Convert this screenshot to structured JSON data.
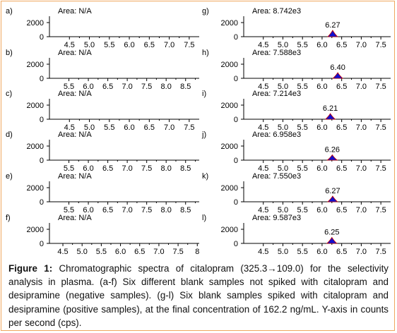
{
  "figure": {
    "caption_label": "Figure 1:",
    "caption_text": " Chromatographic spectra of citalopram (325.3→109.0) for the selectivity analysis in plasma. (a-f) Six different blank samples not spiked with citalopram and desipramine (negative samples). (g-l) Six blank samples spiked with citalopram and desipramine (positive samples), at the final concentration of 162.2 ng/mL. Y-axis in counts per second (cps)."
  },
  "colors": {
    "peak_fill": "#1010d0",
    "peak_outline": "#c00000",
    "axis": "#000000"
  },
  "chart_data": [
    {
      "panel": "a)",
      "type": "area",
      "area_label": "Area: N/A",
      "yticks": [
        0,
        2000
      ],
      "ylim": [
        0,
        2700
      ],
      "xlim": [
        4.0,
        7.75
      ],
      "xticks": [
        "4.5",
        "5.0",
        "5.5",
        "6.0",
        "6.5",
        "7.0",
        "7.5"
      ],
      "peak": null
    },
    {
      "panel": "b)",
      "type": "area",
      "area_label": "Area: N/A",
      "yticks": [
        0,
        2000
      ],
      "ylim": [
        0,
        2700
      ],
      "xlim": [
        5.0,
        8.85
      ],
      "xticks": [
        "5.5",
        "6.0",
        "6.5",
        "7.0",
        "7.5",
        "8.0",
        "8.5"
      ],
      "peak": null
    },
    {
      "panel": "c)",
      "type": "area",
      "area_label": "Area: N/A",
      "yticks": [
        0,
        2000
      ],
      "ylim": [
        0,
        2700
      ],
      "xlim": [
        4.0,
        7.75
      ],
      "xticks": [
        "4.5",
        "5.0",
        "5.5",
        "6.0",
        "6.5",
        "7.0",
        "7.5"
      ],
      "peak": null
    },
    {
      "panel": "d)",
      "type": "area",
      "area_label": "Area: N/A",
      "yticks": [
        0,
        2000
      ],
      "ylim": [
        0,
        2700
      ],
      "xlim": [
        5.0,
        8.85
      ],
      "xticks": [
        "5.5",
        "6.0",
        "6.5",
        "7.0",
        "7.5",
        "8.0",
        "8.5"
      ],
      "peak": null
    },
    {
      "panel": "e)",
      "type": "area",
      "area_label": "Area: N/A",
      "yticks": [
        0,
        2000
      ],
      "ylim": [
        0,
        2700
      ],
      "xlim": [
        5.0,
        8.85
      ],
      "xticks": [
        "5.5",
        "6.0",
        "6.5",
        "7.0",
        "7.5",
        "8.0",
        "8.5"
      ],
      "peak": null
    },
    {
      "panel": "f)",
      "type": "area",
      "area_label": "Area: N/A",
      "yticks": [
        0,
        2000
      ],
      "ylim": [
        0,
        2700
      ],
      "xlim": [
        4.15,
        8.05
      ],
      "xticks": [
        "4.5",
        "5.0",
        "5.5",
        "6.0",
        "6.5",
        "7.0",
        "7.5",
        "8"
      ],
      "peak": null
    },
    {
      "panel": "g)",
      "type": "area",
      "area_label": "Area: 8.742e3",
      "yticks": [
        0,
        2000
      ],
      "ylim": [
        0,
        2700
      ],
      "xlim": [
        4.0,
        7.75
      ],
      "xticks": [
        "4.5",
        "5.0",
        "5.5",
        "6.0",
        "6.5",
        "7.0",
        "7.5"
      ],
      "peak": {
        "rt": 6.27,
        "label": "6.27",
        "height": 900
      }
    },
    {
      "panel": "h)",
      "type": "area",
      "area_label": "Area: 7.588e3",
      "yticks": [
        0,
        2000
      ],
      "ylim": [
        0,
        2700
      ],
      "xlim": [
        4.0,
        7.75
      ],
      "xticks": [
        "4.5",
        "5.0",
        "5.5",
        "6.0",
        "6.5",
        "7.0",
        "7.5"
      ],
      "peak": {
        "rt": 6.4,
        "label": "6.40",
        "height": 800
      }
    },
    {
      "panel": "i)",
      "type": "area",
      "area_label": "Area: 7.214e3",
      "yticks": [
        0,
        2000
      ],
      "ylim": [
        0,
        2700
      ],
      "xlim": [
        4.0,
        7.75
      ],
      "xticks": [
        "4.5",
        "5.0",
        "5.5",
        "6.0",
        "6.5",
        "7.0",
        "7.5"
      ],
      "peak": {
        "rt": 6.21,
        "label": "6.21",
        "height": 800
      }
    },
    {
      "panel": "j)",
      "type": "area",
      "area_label": "Area: 6.958e3",
      "yticks": [
        0,
        2000
      ],
      "ylim": [
        0,
        2700
      ],
      "xlim": [
        4.0,
        7.75
      ],
      "xticks": [
        "4.5",
        "5.0",
        "5.5",
        "6.0",
        "6.5",
        "7.0",
        "7.5"
      ],
      "peak": {
        "rt": 6.26,
        "label": "6.26",
        "height": 750
      }
    },
    {
      "panel": "k)",
      "type": "area",
      "area_label": "Area: 7.550e3",
      "yticks": [
        0,
        2000
      ],
      "ylim": [
        0,
        2700
      ],
      "xlim": [
        4.0,
        7.75
      ],
      "xticks": [
        "4.5",
        "5.0",
        "5.5",
        "6.0",
        "6.5",
        "7.0",
        "7.5"
      ],
      "peak": {
        "rt": 6.27,
        "label": "6.27",
        "height": 800
      }
    },
    {
      "panel": "l)",
      "type": "area",
      "area_label": "Area: 9.587e3",
      "yticks": [
        0,
        2000
      ],
      "ylim": [
        0,
        2700
      ],
      "xlim": [
        4.0,
        7.75
      ],
      "xticks": [
        "4.5",
        "5.0",
        "5.5",
        "6.0",
        "6.5",
        "7.0",
        "7.5"
      ],
      "peak": {
        "rt": 6.25,
        "label": "6.25",
        "height": 850
      }
    }
  ]
}
